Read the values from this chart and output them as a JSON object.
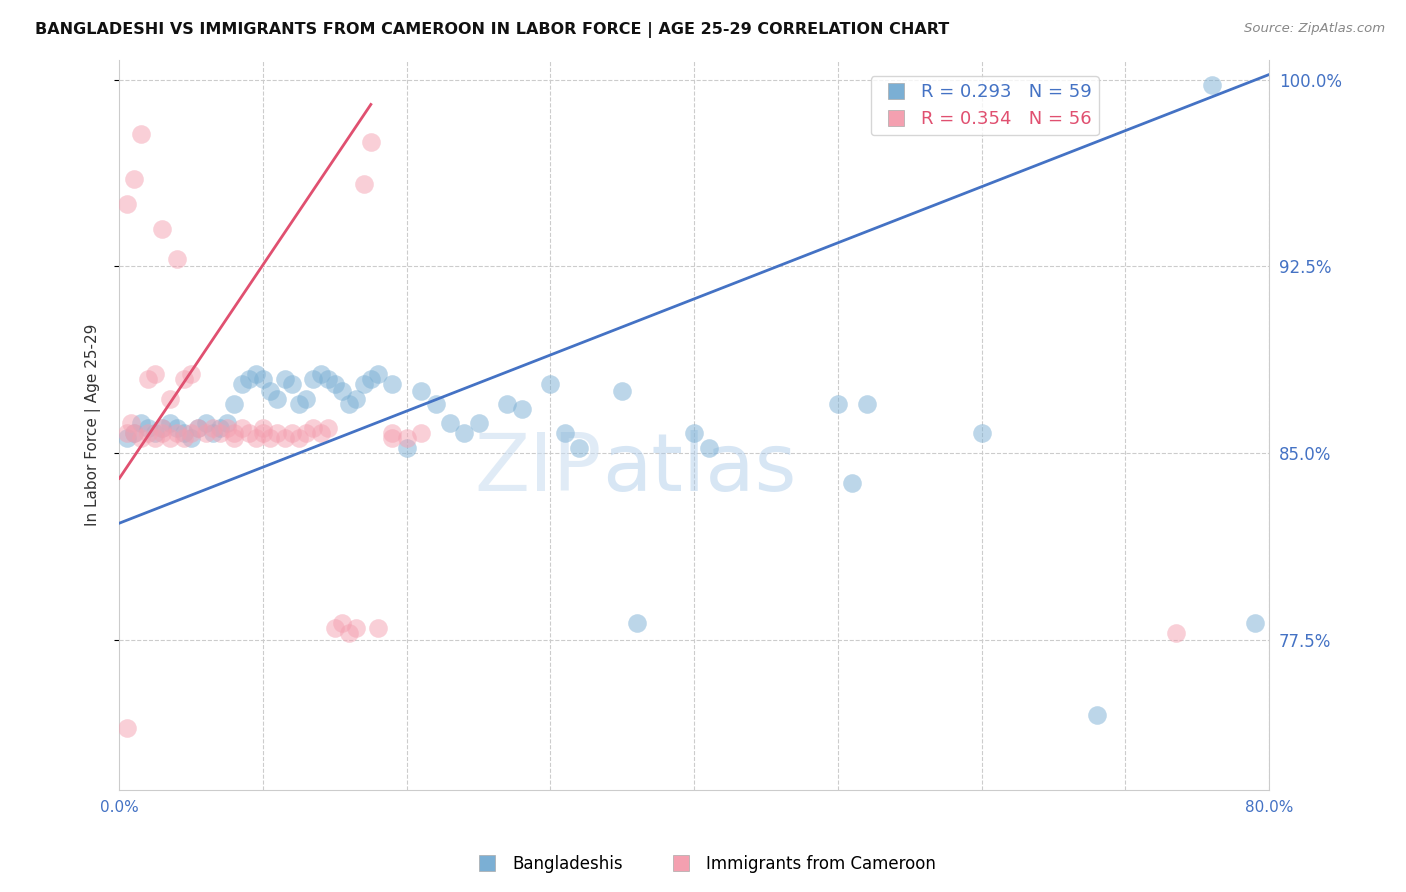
{
  "title": "BANGLADESHI VS IMMIGRANTS FROM CAMEROON IN LABOR FORCE | AGE 25-29 CORRELATION CHART",
  "source": "Source: ZipAtlas.com",
  "ylabel": "In Labor Force | Age 25-29",
  "r_blue": 0.293,
  "n_blue": 59,
  "r_pink": 0.354,
  "n_pink": 56,
  "xmin": 0.0,
  "xmax": 0.8,
  "ymin": 0.715,
  "ymax": 1.008,
  "yticks": [
    0.775,
    0.85,
    0.925,
    1.0
  ],
  "ytick_labels": [
    "77.5%",
    "85.0%",
    "92.5%",
    "100.0%"
  ],
  "xticks": [
    0.0,
    0.1,
    0.2,
    0.3,
    0.4,
    0.5,
    0.6,
    0.7,
    0.8
  ],
  "xtick_labels": [
    "0.0%",
    "",
    "",
    "",
    "",
    "",
    "",
    "",
    "80.0%"
  ],
  "legend_labels": [
    "Bangladeshis",
    "Immigrants from Cameroon"
  ],
  "blue_color": "#7BAFD4",
  "pink_color": "#F4A0B0",
  "blue_line_color": "#4472C4",
  "pink_line_color": "#E05070",
  "watermark_zip": "ZIP",
  "watermark_atlas": "atlas",
  "blue_trend_x": [
    0.0,
    0.8
  ],
  "blue_trend_y": [
    0.822,
    1.002
  ],
  "pink_trend_x": [
    0.0,
    0.175
  ],
  "pink_trend_y": [
    0.84,
    0.99
  ],
  "blue_x": [
    0.005,
    0.01,
    0.015,
    0.02,
    0.025,
    0.03,
    0.035,
    0.04,
    0.045,
    0.05,
    0.055,
    0.06,
    0.065,
    0.07,
    0.075,
    0.08,
    0.085,
    0.09,
    0.095,
    0.1,
    0.105,
    0.11,
    0.115,
    0.12,
    0.125,
    0.13,
    0.135,
    0.14,
    0.145,
    0.15,
    0.155,
    0.16,
    0.165,
    0.17,
    0.175,
    0.18,
    0.19,
    0.2,
    0.21,
    0.22,
    0.23,
    0.24,
    0.25,
    0.27,
    0.28,
    0.3,
    0.31,
    0.32,
    0.35,
    0.36,
    0.4,
    0.41,
    0.5,
    0.51,
    0.52,
    0.6,
    0.68,
    0.76,
    0.79
  ],
  "blue_y": [
    0.856,
    0.858,
    0.862,
    0.86,
    0.858,
    0.86,
    0.862,
    0.86,
    0.858,
    0.856,
    0.86,
    0.862,
    0.858,
    0.86,
    0.862,
    0.87,
    0.878,
    0.88,
    0.882,
    0.88,
    0.875,
    0.872,
    0.88,
    0.878,
    0.87,
    0.872,
    0.88,
    0.882,
    0.88,
    0.878,
    0.875,
    0.87,
    0.872,
    0.878,
    0.88,
    0.882,
    0.878,
    0.852,
    0.875,
    0.87,
    0.862,
    0.858,
    0.862,
    0.87,
    0.868,
    0.878,
    0.858,
    0.852,
    0.875,
    0.782,
    0.858,
    0.852,
    0.87,
    0.838,
    0.87,
    0.858,
    0.745,
    0.998,
    0.782
  ],
  "pink_x": [
    0.005,
    0.005,
    0.008,
    0.01,
    0.01,
    0.015,
    0.015,
    0.02,
    0.02,
    0.025,
    0.025,
    0.03,
    0.03,
    0.03,
    0.035,
    0.035,
    0.04,
    0.04,
    0.045,
    0.045,
    0.05,
    0.05,
    0.055,
    0.06,
    0.065,
    0.07,
    0.075,
    0.08,
    0.08,
    0.085,
    0.09,
    0.095,
    0.1,
    0.1,
    0.105,
    0.11,
    0.115,
    0.12,
    0.125,
    0.13,
    0.135,
    0.14,
    0.145,
    0.15,
    0.155,
    0.16,
    0.165,
    0.17,
    0.175,
    0.18,
    0.19,
    0.19,
    0.2,
    0.21,
    0.005,
    0.735
  ],
  "pink_y": [
    0.858,
    0.95,
    0.862,
    0.858,
    0.96,
    0.856,
    0.978,
    0.858,
    0.88,
    0.856,
    0.882,
    0.858,
    0.86,
    0.94,
    0.856,
    0.872,
    0.858,
    0.928,
    0.856,
    0.88,
    0.858,
    0.882,
    0.86,
    0.858,
    0.86,
    0.858,
    0.86,
    0.856,
    0.858,
    0.86,
    0.858,
    0.856,
    0.858,
    0.86,
    0.856,
    0.858,
    0.856,
    0.858,
    0.856,
    0.858,
    0.86,
    0.858,
    0.86,
    0.78,
    0.782,
    0.778,
    0.78,
    0.958,
    0.975,
    0.78,
    0.856,
    0.858,
    0.856,
    0.858,
    0.74,
    0.778
  ]
}
